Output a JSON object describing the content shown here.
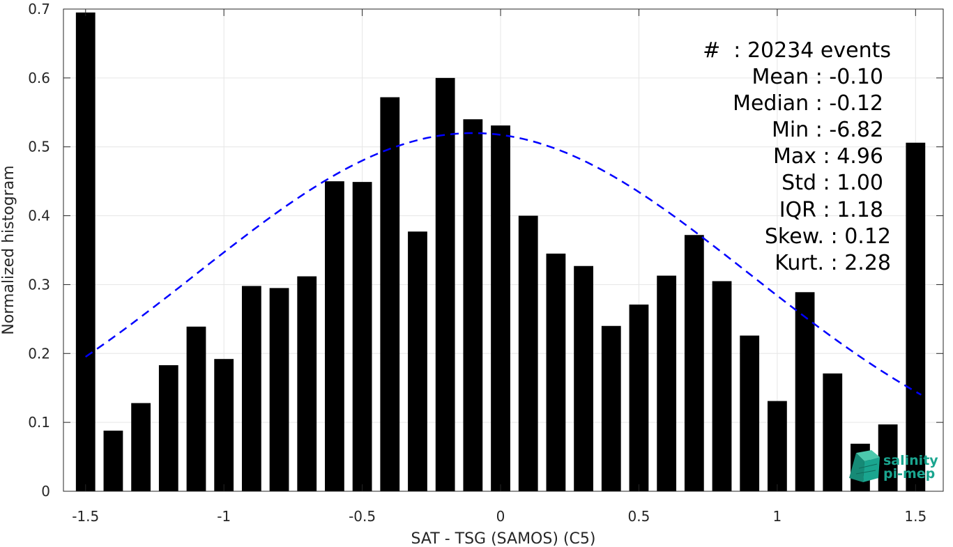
{
  "chart_data": {
    "type": "bar",
    "xlabel": "SAT - TSG (SAMOS) (C5)",
    "ylabel": "Normalized histogram",
    "xlim": [
      -1.58,
      1.6
    ],
    "ylim": [
      0,
      0.7
    ],
    "grid": true,
    "x_ticks": [
      -1.5,
      -1,
      -0.5,
      0,
      0.5,
      1,
      1.5
    ],
    "x_tick_labels": [
      "-1.5",
      "-1",
      "-0.5",
      "0",
      "0.5",
      "1",
      "1.5"
    ],
    "y_ticks": [
      0,
      0.1,
      0.2,
      0.3,
      0.4,
      0.5,
      0.6,
      0.7
    ],
    "y_tick_labels": [
      "0",
      "0.1",
      "0.2",
      "0.3",
      "0.4",
      "0.5",
      "0.6",
      "0.7"
    ],
    "bar_width": 0.07,
    "series": [
      {
        "x": [
          -1.5,
          -1.4,
          -1.3,
          -1.2,
          -1.1,
          -1.0,
          -0.9,
          -0.8,
          -0.7,
          -0.6,
          -0.5,
          -0.4,
          -0.3,
          -0.2,
          -0.1,
          0.0,
          0.1,
          0.2,
          0.3,
          0.4,
          0.5,
          0.6,
          0.7,
          0.8,
          0.9,
          1.0,
          1.1,
          1.2,
          1.3,
          1.4,
          1.5
        ],
        "values": [
          0.695,
          0.088,
          0.128,
          0.183,
          0.239,
          0.192,
          0.298,
          0.295,
          0.312,
          0.45,
          0.449,
          0.572,
          0.377,
          0.6,
          0.54,
          0.531,
          0.4,
          0.345,
          0.327,
          0.24,
          0.271,
          0.313,
          0.372,
          0.305,
          0.226,
          0.131,
          0.289,
          0.171,
          0.069,
          0.097,
          0.506
        ],
        "color": "#000000"
      }
    ],
    "fit_curve": {
      "style": "dashed",
      "color": "#0000ff",
      "mean": -0.1,
      "std": 1.0,
      "peak": 0.52,
      "x_range": [
        -1.5,
        1.52
      ]
    }
  },
  "stats_box": {
    "lines": [
      "#  : 20234 events",
      "Mean : -0.10",
      "Median : -0.12",
      "Min : -6.82",
      "Max : 4.96",
      "Std : 1.00",
      "IQR : 1.18",
      "Skew. : 0.12",
      "Kurt. : 2.28"
    ]
  },
  "logo": {
    "line1": "salinity",
    "line2": "pi-mep",
    "color": "#1aa58f"
  }
}
